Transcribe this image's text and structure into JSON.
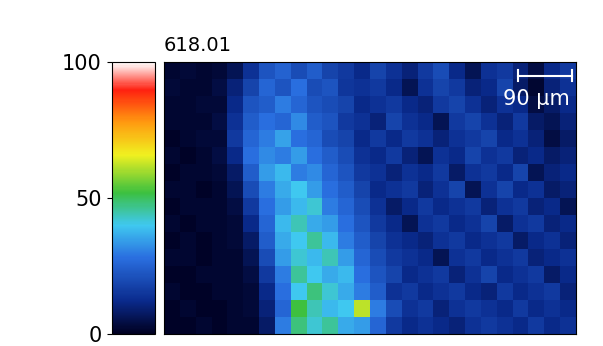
{
  "chart_data": {
    "type": "heatmap",
    "title": "618.01",
    "annotation": "90 μm",
    "tick_labels": false,
    "cells": [
      [
        2,
        3,
        2,
        3,
        6,
        14,
        22,
        25,
        20,
        24,
        18,
        16,
        12,
        18,
        14,
        10,
        16,
        20,
        12,
        6,
        14,
        16,
        10,
        4,
        12,
        16
      ],
      [
        3,
        2,
        2,
        4,
        10,
        18,
        26,
        22,
        28,
        20,
        22,
        15,
        14,
        16,
        12,
        6,
        14,
        18,
        16,
        10,
        12,
        18,
        8,
        2,
        10,
        14
      ],
      [
        2,
        2,
        3,
        3,
        12,
        22,
        24,
        30,
        26,
        22,
        20,
        18,
        12,
        14,
        16,
        12,
        10,
        16,
        18,
        14,
        10,
        14,
        12,
        4,
        8,
        12
      ],
      [
        2,
        2,
        2,
        4,
        14,
        24,
        28,
        26,
        32,
        24,
        22,
        16,
        14,
        10,
        18,
        14,
        12,
        6,
        16,
        18,
        14,
        10,
        16,
        8,
        6,
        10
      ],
      [
        1,
        2,
        3,
        3,
        16,
        26,
        30,
        35,
        28,
        26,
        20,
        18,
        12,
        16,
        12,
        16,
        14,
        10,
        14,
        16,
        18,
        12,
        14,
        10,
        4,
        8
      ],
      [
        2,
        1,
        2,
        4,
        12,
        28,
        32,
        30,
        34,
        28,
        24,
        20,
        14,
        12,
        16,
        10,
        6,
        14,
        12,
        18,
        14,
        16,
        10,
        12,
        8,
        10
      ],
      [
        1,
        2,
        2,
        3,
        8,
        24,
        34,
        38,
        30,
        32,
        26,
        22,
        16,
        14,
        10,
        14,
        12,
        16,
        8,
        14,
        16,
        12,
        18,
        6,
        10,
        12
      ],
      [
        2,
        2,
        1,
        2,
        6,
        20,
        30,
        36,
        40,
        34,
        28,
        24,
        18,
        12,
        14,
        16,
        10,
        14,
        18,
        6,
        14,
        18,
        12,
        14,
        8,
        10
      ],
      [
        1,
        2,
        2,
        2,
        4,
        16,
        28,
        34,
        38,
        42,
        30,
        26,
        20,
        14,
        8,
        12,
        16,
        12,
        14,
        16,
        10,
        14,
        16,
        10,
        12,
        6
      ],
      [
        2,
        1,
        2,
        2,
        3,
        12,
        26,
        38,
        44,
        36,
        34,
        28,
        22,
        16,
        12,
        6,
        14,
        16,
        12,
        14,
        18,
        8,
        14,
        16,
        10,
        12
      ],
      [
        1,
        2,
        1,
        2,
        3,
        8,
        24,
        36,
        40,
        46,
        38,
        30,
        24,
        18,
        14,
        12,
        10,
        14,
        16,
        12,
        14,
        16,
        8,
        12,
        14,
        10
      ],
      [
        2,
        2,
        1,
        2,
        2,
        6,
        20,
        34,
        42,
        38,
        44,
        34,
        26,
        20,
        16,
        14,
        12,
        6,
        14,
        16,
        12,
        14,
        16,
        10,
        12,
        14
      ],
      [
        1,
        1,
        2,
        2,
        2,
        4,
        16,
        30,
        46,
        40,
        36,
        38,
        28,
        22,
        18,
        12,
        14,
        16,
        10,
        14,
        18,
        12,
        14,
        16,
        8,
        12
      ],
      [
        2,
        1,
        1,
        2,
        2,
        3,
        12,
        28,
        40,
        48,
        42,
        36,
        30,
        24,
        14,
        16,
        12,
        14,
        16,
        12,
        10,
        16,
        12,
        14,
        16,
        10
      ],
      [
        1,
        2,
        1,
        1,
        2,
        3,
        10,
        26,
        52,
        44,
        38,
        40,
        62,
        30,
        20,
        14,
        16,
        10,
        14,
        16,
        14,
        12,
        16,
        12,
        14,
        12
      ],
      [
        1,
        1,
        2,
        1,
        2,
        2,
        8,
        30,
        48,
        42,
        46,
        36,
        34,
        26,
        16,
        12,
        14,
        12,
        10,
        14,
        16,
        14,
        12,
        16,
        12,
        14
      ]
    ],
    "colorbar": {
      "range": [
        0,
        100
      ],
      "ticks": [
        0,
        50,
        100
      ]
    }
  }
}
